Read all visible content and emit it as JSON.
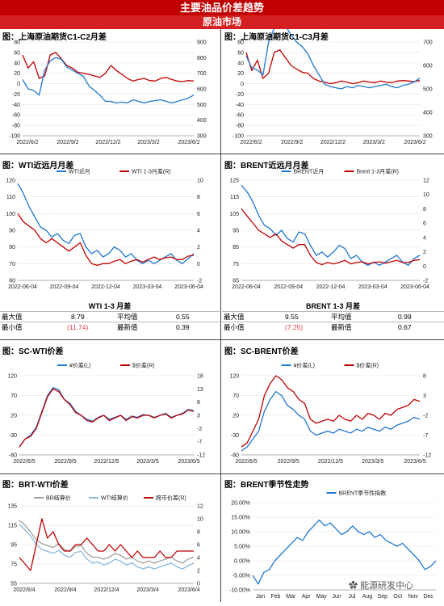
{
  "header": {
    "title": "主要油品价差趋势",
    "subtitle": "原油市场"
  },
  "colors": {
    "blue": "#1f77d0",
    "lightblue": "#8ab8e0",
    "red": "#c00000",
    "gray": "#a0a0a0"
  },
  "charts": [
    {
      "id": "c1",
      "title": "图：上海原油期货C1-C2月差",
      "type": "line",
      "left_ticks": [
        "80",
        "60",
        "40",
        "20",
        "0",
        "-20",
        "-40",
        "-60",
        "-80",
        "-100"
      ],
      "right_ticks": [
        "900",
        "800",
        "700",
        "600",
        "500",
        "400",
        "300"
      ],
      "x_ticks": [
        "2022/6/2",
        "2022/9/2",
        "2022/12/2",
        "2023/3/2",
        "2023/6/2"
      ],
      "series": [
        {
          "name": "",
          "color": "#c00000",
          "axis": "left",
          "values": [
            55,
            30,
            42,
            10,
            15,
            55,
            60,
            48,
            35,
            30,
            22,
            20,
            18,
            15,
            12,
            20,
            35,
            25,
            18,
            10,
            5,
            8,
            10,
            6,
            5,
            10,
            12,
            8,
            5,
            4,
            6,
            5
          ]
        },
        {
          "name": "",
          "color": "#1f77d0",
          "axis": "right",
          "values": [
            660,
            600,
            590,
            560,
            720,
            780,
            800,
            790,
            740,
            720,
            700,
            680,
            620,
            590,
            560,
            520,
            520,
            510,
            515,
            510,
            530,
            520,
            510,
            520,
            525,
            530,
            520,
            510,
            520,
            530,
            540,
            560
          ]
        }
      ]
    },
    {
      "id": "c2",
      "title": "图：上海原油期货C1-C3月差",
      "type": "line",
      "left_ticks": [
        "80",
        "60",
        "40",
        "20",
        "0",
        "-20",
        "-40",
        "-60",
        "-80",
        "-100"
      ],
      "right_ticks": [
        "700",
        "600",
        "500",
        "400",
        "300"
      ],
      "x_ticks": [
        "2022/6/2",
        "2022/9/2",
        "2022/12/2",
        "2023/3/2",
        "2023/6/2"
      ],
      "series": [
        {
          "name": "",
          "color": "#c00000",
          "axis": "left",
          "values": [
            60,
            25,
            45,
            10,
            20,
            60,
            65,
            50,
            35,
            28,
            22,
            20,
            10,
            5,
            3,
            0,
            2,
            5,
            3,
            0,
            2,
            5,
            3,
            2,
            5,
            3,
            2,
            5,
            6,
            5,
            4,
            6
          ]
        },
        {
          "name": "",
          "color": "#1f77d0",
          "axis": "right",
          "values": [
            640,
            590,
            580,
            560,
            700,
            760,
            780,
            770,
            730,
            700,
            680,
            650,
            600,
            560,
            520,
            510,
            505,
            500,
            510,
            505,
            515,
            510,
            505,
            510,
            515,
            520,
            510,
            505,
            515,
            520,
            530,
            545
          ]
        }
      ]
    },
    {
      "id": "c3",
      "title": "图：WTI近远月月差",
      "type": "line",
      "left_ticks": [
        "120",
        "110",
        "100",
        "90",
        "80",
        "70",
        "60"
      ],
      "right_ticks": [
        "10",
        "8",
        "6",
        "4",
        "2",
        "0",
        "-2"
      ],
      "x_ticks": [
        "2022-06-04",
        "2022-09-04",
        "2022-12-04",
        "2023-03-04",
        "2023-06-04"
      ],
      "legend": [
        "WTI近月",
        "WTI 1-3月差(R)"
      ],
      "series": [
        {
          "name": "WTI近月",
          "color": "#1f77d0",
          "axis": "left",
          "values": [
            118,
            112,
            104,
            98,
            92,
            90,
            86,
            88,
            84,
            82,
            87,
            88,
            80,
            76,
            78,
            74,
            76,
            80,
            78,
            74,
            76,
            72,
            70,
            72,
            70,
            72,
            74,
            76,
            72,
            70,
            73,
            76
          ]
        },
        {
          "name": "WTI 1-3月差(R)",
          "color": "#c00000",
          "axis": "right",
          "values": [
            6,
            5,
            4.5,
            4,
            3,
            2.5,
            3,
            2.5,
            2,
            1.5,
            2,
            2.5,
            1,
            0,
            -0.2,
            0,
            0,
            0.3,
            0.5,
            0,
            0.3,
            0.5,
            0.2,
            0.5,
            0.8,
            0.5,
            0.7,
            0.8,
            0.5,
            0.5,
            0.9,
            1
          ]
        }
      ]
    },
    {
      "id": "c4",
      "title": "图：BRENT近远月月差",
      "type": "line",
      "left_ticks": [
        "125",
        "115",
        "105",
        "95",
        "85",
        "75",
        "65"
      ],
      "right_ticks": [
        "12",
        "10",
        "8",
        "6",
        "4",
        "2",
        "0",
        "-2"
      ],
      "x_ticks": [
        "2022-06-04",
        "2022-09-04",
        "2022-12-04",
        "2023-03-04",
        "2023-06-04"
      ],
      "legend": [
        "BRENT近月",
        "Brent 1-3月差(R)"
      ],
      "series": [
        {
          "name": "BRENT近月",
          "color": "#1f77d0",
          "axis": "left",
          "values": [
            122,
            118,
            112,
            104,
            98,
            96,
            92,
            95,
            90,
            88,
            94,
            93,
            86,
            80,
            82,
            79,
            82,
            86,
            84,
            78,
            80,
            76,
            74,
            76,
            74,
            76,
            78,
            80,
            76,
            74,
            78,
            80
          ]
        },
        {
          "name": "Brent 1-3月差(R)",
          "color": "#c00000",
          "axis": "right",
          "values": [
            8,
            7,
            6,
            5,
            4.5,
            4,
            4.5,
            3.5,
            3,
            2.5,
            3,
            3,
            1.5,
            0.5,
            0.2,
            0.5,
            0.3,
            0.5,
            0.8,
            0.3,
            0.5,
            0.6,
            0.3,
            0.5,
            0.6,
            0.4,
            0.6,
            0.8,
            0.5,
            0.5,
            0.8,
            0.9
          ]
        }
      ]
    },
    {
      "id": "c5",
      "title": "图：SC-WTI价差",
      "type": "line",
      "left_ticks": [
        "120",
        "70",
        "20",
        "-30",
        "-80"
      ],
      "right_ticks": [
        "18",
        "13",
        "8",
        "3",
        "-2",
        "-7",
        "-12"
      ],
      "x_ticks": [
        "2022/6/5",
        "2022/9/5",
        "2022/12/5",
        "2023/3/5",
        "2023/6/5"
      ],
      "legend": [
        "¥价差(L)",
        "$价差(R)"
      ],
      "series": [
        {
          "name": "¥价差(L)",
          "color": "#1f77d0",
          "axis": "left",
          "values": [
            -60,
            -40,
            -30,
            -10,
            30,
            70,
            90,
            85,
            60,
            50,
            30,
            20,
            10,
            5,
            15,
            20,
            10,
            15,
            20,
            10,
            18,
            15,
            22,
            20,
            15,
            20,
            25,
            15,
            20,
            25,
            35,
            32
          ]
        },
        {
          "name": "$价差(R)",
          "color": "#c00000",
          "axis": "right",
          "values": [
            -9,
            -6,
            -5,
            -2,
            4,
            10,
            13,
            12,
            9,
            7,
            4,
            3,
            1,
            0.5,
            2,
            3,
            1,
            2,
            3,
            1,
            2.5,
            2,
            3,
            3,
            2,
            3,
            3.5,
            2,
            3,
            3.5,
            5,
            4.5
          ]
        }
      ]
    },
    {
      "id": "c6",
      "title": "图：SC-BRENT价差",
      "type": "line",
      "left_ticks": [
        "120",
        "70",
        "20",
        "-30",
        "-80"
      ],
      "right_ticks": [
        "8",
        "3",
        "-2",
        "-7",
        "-12"
      ],
      "x_ticks": [
        "2022/6/5",
        "2022/9/5",
        "2022/12/5",
        "2023/3/5",
        "2023/6/5"
      ],
      "legend": [
        "¥价差(L)",
        "$价差(R)"
      ],
      "series": [
        {
          "name": "¥价差(L)",
          "color": "#1f77d0",
          "axis": "left",
          "values": [
            -70,
            -60,
            -40,
            -20,
            30,
            60,
            80,
            70,
            45,
            35,
            20,
            10,
            -20,
            -30,
            -25,
            -20,
            -25,
            -15,
            -20,
            -25,
            -15,
            -20,
            -10,
            -15,
            -20,
            -10,
            -15,
            -5,
            0,
            5,
            15,
            10
          ]
        },
        {
          "name": "$价差(R)",
          "color": "#c00000",
          "axis": "right",
          "values": [
            -10,
            -9,
            -6,
            -3,
            3,
            6,
            8,
            7,
            5,
            4,
            2,
            1,
            -3,
            -4,
            -3.5,
            -3,
            -3.5,
            -2,
            -3,
            -3.5,
            -2,
            -3,
            -1.5,
            -2,
            -3,
            -1.5,
            -2,
            -0.5,
            0,
            0.5,
            2,
            1.5
          ]
        }
      ]
    },
    {
      "id": "c7",
      "title": "图：BRT-WTI价差",
      "type": "line",
      "left_ticks": [
        "135",
        "115",
        "95",
        "75",
        "55"
      ],
      "right_ticks": [
        "12",
        "10",
        "8",
        "6",
        "4",
        "2",
        "0"
      ],
      "x_ticks": [
        "2022/6/4",
        "2022/9/4",
        "2022/12/4",
        "2023/3/4",
        "2023/6/4"
      ],
      "legend": [
        "BR结算价",
        "WTI结算价",
        "跨市价差(R)"
      ],
      "series": [
        {
          "name": "BR结算价",
          "color": "#a0a0a0",
          "axis": "left",
          "values": [
            120,
            115,
            108,
            100,
            96,
            94,
            92,
            96,
            90,
            88,
            93,
            94,
            86,
            82,
            82,
            80,
            82,
            86,
            84,
            80,
            82,
            78,
            76,
            78,
            76,
            78,
            80,
            82,
            78,
            76,
            80,
            82
          ]
        },
        {
          "name": "WTI结算价",
          "color": "#8ab8e0",
          "axis": "left",
          "values": [
            116,
            110,
            104,
            95,
            90,
            88,
            86,
            89,
            84,
            82,
            87,
            88,
            80,
            76,
            77,
            74,
            76,
            80,
            78,
            74,
            76,
            72,
            70,
            72,
            70,
            72,
            74,
            76,
            72,
            70,
            73,
            76
          ]
        },
        {
          "name": "跨市价差(R)",
          "color": "#c00000",
          "axis": "right",
          "values": [
            4,
            3,
            2,
            6,
            10,
            7,
            8,
            6,
            5,
            5,
            6,
            6,
            7,
            6,
            5,
            5,
            6,
            5,
            6,
            5,
            4,
            5,
            4,
            4,
            4,
            5,
            4,
            4,
            5,
            5,
            5,
            5
          ]
        }
      ]
    },
    {
      "id": "c8",
      "title": "图：BRENT季节性走势",
      "type": "line",
      "left_ticks": [
        "20.00%",
        "15.00%",
        "10.00%",
        "5.00%",
        "0.00%",
        "-5.00%",
        "-10.00%"
      ],
      "x_ticks": [
        "Jan",
        "Feb",
        "Mar",
        "Apr",
        "May",
        "Jun",
        "Jul",
        "Aug",
        "Sep",
        "Oct",
        "Nov",
        "Dec"
      ],
      "legend": [
        "BRENT季节性指数"
      ],
      "series": [
        {
          "name": "BRENT季节性指数",
          "color": "#1f77d0",
          "axis": "left",
          "values": [
            -5,
            -8,
            -4,
            -3,
            0,
            2,
            4,
            6,
            8,
            7,
            10,
            12,
            14,
            12,
            13,
            11,
            9,
            10,
            12,
            10,
            9,
            10,
            8,
            9,
            7,
            6,
            5,
            6,
            4,
            2,
            0,
            -3,
            -2,
            0
          ]
        }
      ]
    }
  ],
  "stats": [
    {
      "caption": "WTI 1-3 月差",
      "max_label": "最大值",
      "max": "8.79",
      "avg_label": "平均值",
      "avg": "0.55",
      "min_label": "最小值",
      "min": "(11.74)",
      "latest_label": "最新值",
      "latest": "0.39"
    },
    {
      "caption": "BRENT 1-3 月差",
      "max_label": "最大值",
      "max": "9.55",
      "avg_label": "平均值",
      "avg": "0.99",
      "min_label": "最小值",
      "min": "(7.25)",
      "latest_label": "最新值",
      "latest": "0.67"
    }
  ],
  "watermark": "能源研发中心"
}
